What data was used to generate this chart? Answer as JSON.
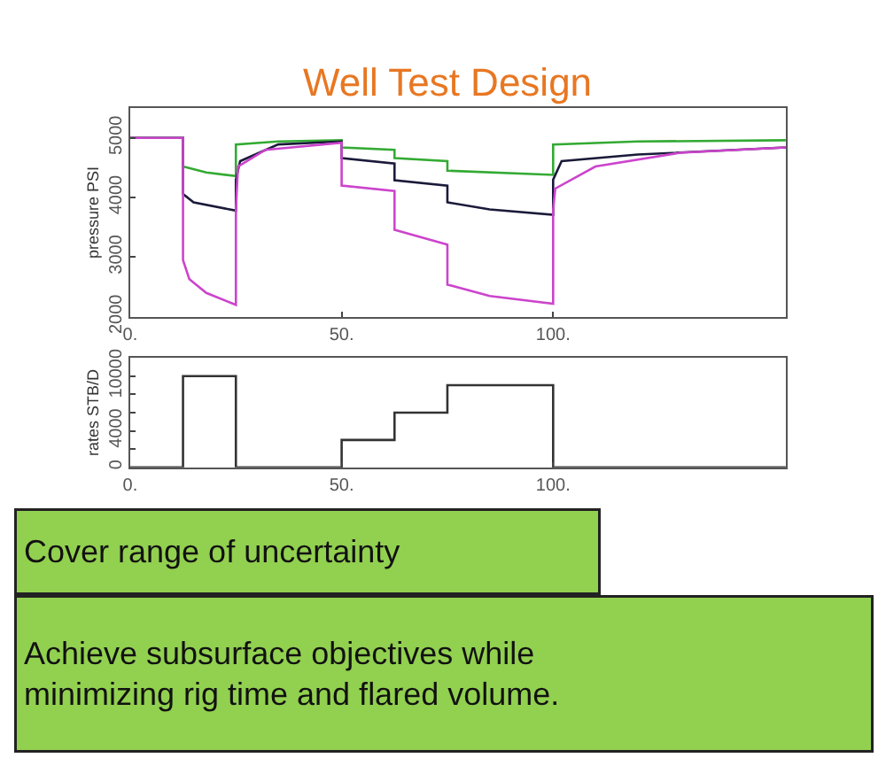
{
  "chart_data": [
    {
      "type": "line",
      "title": "Well Test Design",
      "ylabel": "pressure PSI",
      "marker": "none",
      "xlim": [
        0,
        155
      ],
      "xticks": [
        {
          "value": 0,
          "label": "0."
        },
        {
          "value": 50,
          "label": "50."
        },
        {
          "value": 100,
          "label": "100."
        }
      ],
      "ylim": [
        2000,
        5500
      ],
      "yticks": [
        2000,
        3000,
        4000,
        5000
      ],
      "series": [
        {
          "color": "#33aa33",
          "x": [
            0,
            12.5,
            12.5,
            18,
            25,
            25,
            35,
            50,
            50,
            62.5,
            62.5,
            75,
            75,
            100,
            100,
            120,
            155
          ],
          "values": [
            5000,
            5000,
            4520,
            4420,
            4360,
            4890,
            4940,
            4960,
            4840,
            4800,
            4660,
            4610,
            4450,
            4380,
            4890,
            4940,
            4960
          ]
        },
        {
          "color": "#1a1a3a",
          "x": [
            0,
            12.5,
            12.5,
            15,
            25,
            25,
            26,
            35,
            50,
            50,
            62.5,
            62.5,
            75,
            75,
            85,
            100,
            100,
            102,
            120,
            155
          ],
          "values": [
            5000,
            5000,
            4060,
            3920,
            3780,
            4300,
            4610,
            4890,
            4940,
            4660,
            4570,
            4290,
            4200,
            3920,
            3800,
            3710,
            4300,
            4610,
            4720,
            4840
          ]
        },
        {
          "color": "#cc44cc",
          "x": [
            0,
            12.5,
            12.5,
            14,
            18,
            25,
            25,
            25.5,
            32,
            50,
            50,
            62.5,
            62.5,
            75,
            75,
            85,
            100,
            100,
            100.5,
            110,
            130,
            155
          ],
          "values": [
            5000,
            5000,
            2950,
            2630,
            2400,
            2200,
            3800,
            4520,
            4800,
            4920,
            4200,
            4110,
            3460,
            3210,
            2540,
            2350,
            2220,
            3800,
            4150,
            4520,
            4750,
            4840
          ]
        }
      ]
    },
    {
      "type": "step",
      "ylabel": "rates STB/D",
      "xlim": [
        0,
        155
      ],
      "xticks": [
        {
          "value": 0,
          "label": "0."
        },
        {
          "value": 50,
          "label": "50."
        },
        {
          "value": 100,
          "label": "100."
        }
      ],
      "ylim": [
        0,
        12000
      ],
      "yticks": [
        0,
        {
          "value": 2000,
          "label": null
        },
        4000,
        {
          "value": 6000,
          "label": null
        },
        {
          "value": 8000,
          "label": null
        },
        10000
      ],
      "series": [
        {
          "color": "#333333",
          "x": [
            0,
            12.5,
            25,
            50,
            62.5,
            75,
            100,
            155
          ],
          "values": [
            0,
            10000,
            0,
            3000,
            6000,
            9000,
            0,
            0
          ]
        }
      ],
      "annotations": [
        "Cover range of uncertainty",
        "Achieve subsurface objectives while\nminimizing rig time and flared volume."
      ]
    }
  ]
}
